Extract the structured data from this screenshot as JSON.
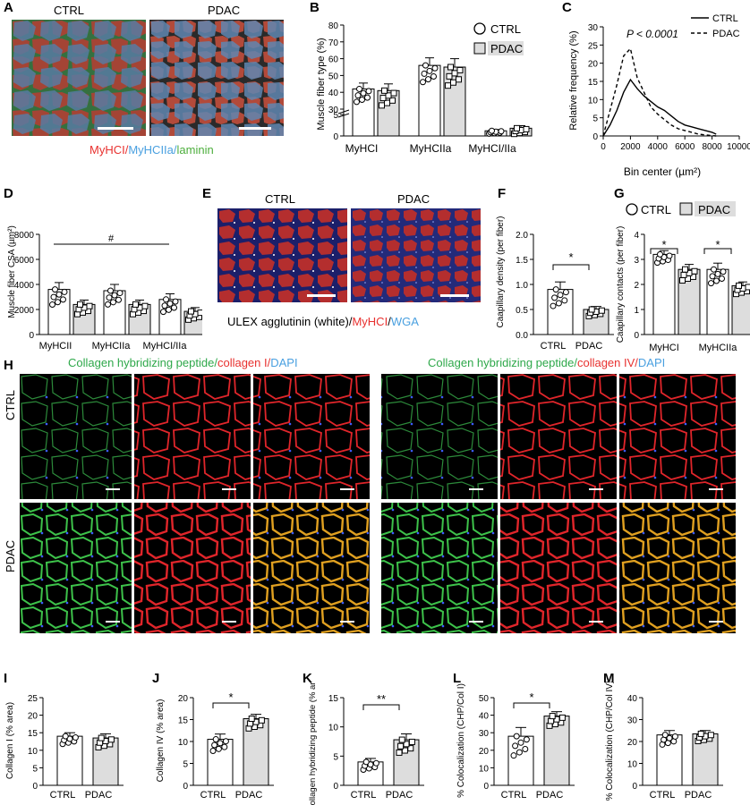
{
  "panels": {
    "A": {
      "letter": "A",
      "left_title": "CTRL",
      "right_title": "PDAC",
      "legend": [
        {
          "text": "MyHCI",
          "color": "#e8312f"
        },
        {
          "text": "/",
          "color": "#e8312f"
        },
        {
          "text": "MyHCIIa",
          "color": "#4aa0e0"
        },
        {
          "text": "/",
          "color": "#4aa0e0"
        },
        {
          "text": "laminin",
          "color": "#4cae3c"
        }
      ]
    },
    "B": {
      "letter": "B",
      "ylabel": "Muscle fiber type (%)",
      "categories": [
        "MyHCI",
        "MyHCIIa",
        "MyHCI/IIa"
      ],
      "legend": [
        "CTRL",
        "PDAC"
      ],
      "yticks": [
        "0",
        "5",
        "30",
        "40",
        "50",
        "60",
        "70",
        "80"
      ]
    },
    "C": {
      "letter": "C",
      "ylabel": "Relative frequency (%)",
      "xlabel": "Bin center (µm²)",
      "pvalue": "P < 0.0001",
      "legend": [
        "CTRL",
        "PDAC"
      ],
      "yticks": [
        "0",
        "5",
        "10",
        "15",
        "20",
        "25",
        "30"
      ],
      "xticks": [
        "0",
        "2000",
        "4000",
        "6000",
        "8000",
        "10000"
      ]
    },
    "D": {
      "letter": "D",
      "ylabel": "Muscle fiber CSA (µm²)",
      "categories": [
        "MyHCII",
        "MyHCIIa",
        "MyHCI/IIa"
      ],
      "annot": "#",
      "yticks": [
        "0",
        "2000",
        "4000",
        "6000",
        "8000"
      ]
    },
    "E": {
      "letter": "E",
      "left_title": "CTRL",
      "right_title": "PDAC",
      "legend": [
        {
          "text": "ULEX agglutinin (white)/",
          "color": "#000"
        },
        {
          "text": "MyHCI",
          "color": "#e8312f"
        },
        {
          "text": "/",
          "color": "#000"
        },
        {
          "text": "WGA",
          "color": "#4aa0e0"
        }
      ]
    },
    "F": {
      "letter": "F",
      "ylabel": "Caapillary density (per fiber)",
      "categories": [
        "CTRL",
        "PDAC"
      ],
      "annot": "*",
      "yticks": [
        "0.0",
        "0.5",
        "1.0",
        "1.5",
        "2.0"
      ]
    },
    "G": {
      "letter": "G",
      "ylabel": "Caapillary contacts (per fiber)",
      "categories": [
        "MyHCI",
        "MyHCIIa"
      ],
      "legend": [
        "CTRL",
        "PDAC"
      ],
      "annot": [
        "*",
        "*"
      ],
      "yticks": [
        "0",
        "1",
        "2",
        "3",
        "4"
      ]
    },
    "H": {
      "letter": "H",
      "left_title": [
        {
          "text": "Collagen hybridizing peptide",
          "color": "#2ea84a"
        },
        {
          "text": "/",
          "color": "#2ea84a"
        },
        {
          "text": "collagen I",
          "color": "#e8312f"
        },
        {
          "text": "/",
          "color": "#e8312f"
        },
        {
          "text": "DAPI",
          "color": "#4aa0e0"
        }
      ],
      "right_title": [
        {
          "text": "Collagen hybridizing peptide",
          "color": "#2ea84a"
        },
        {
          "text": "/",
          "color": "#2ea84a"
        },
        {
          "text": "collagen IV",
          "color": "#e8312f"
        },
        {
          "text": "/",
          "color": "#e8312f"
        },
        {
          "text": "DAPI",
          "color": "#4aa0e0"
        }
      ],
      "row_labels": [
        "CTRL",
        "PDAC"
      ]
    },
    "I": {
      "letter": "I",
      "ylabel": "Collagen I (% area)",
      "categories": [
        "CTRL",
        "PDAC"
      ],
      "yticks": [
        "0",
        "5",
        "10",
        "15",
        "20",
        "25"
      ]
    },
    "J": {
      "letter": "J",
      "ylabel": "Collagen IV (% area)",
      "categories": [
        "CTRL",
        "PDAC"
      ],
      "annot": "*",
      "yticks": [
        "0",
        "5",
        "10",
        "15",
        "20"
      ]
    },
    "K": {
      "letter": "K",
      "ylabel": "Collagen hybridizing peptide (% area)",
      "categories": [
        "CTRL",
        "PDAC"
      ],
      "annot": "**",
      "yticks": [
        "0",
        "5",
        "10",
        "15"
      ]
    },
    "L": {
      "letter": "L",
      "ylabel": "% Colocalization (CHP/Col I)",
      "categories": [
        "CTRL",
        "PDAC"
      ],
      "annot": "*",
      "yticks": [
        "0",
        "10",
        "20",
        "30",
        "40",
        "50"
      ]
    },
    "M": {
      "letter": "M",
      "ylabel": "% Colocalization (CHP/Col IV)",
      "categories": [
        "CTRL",
        "PDAC"
      ],
      "yticks": [
        "0",
        "10",
        "20",
        "30",
        "40"
      ]
    }
  },
  "chart_data": [
    {
      "panel": "B",
      "type": "bar",
      "categories": [
        "MyHCI",
        "MyHCIIa",
        "MyHCI/IIa"
      ],
      "series": [
        {
          "name": "CTRL",
          "values": [
            42,
            56,
            1.2
          ],
          "errors": [
            3.5,
            4.5,
            0.3
          ]
        },
        {
          "name": "PDAC",
          "values": [
            41,
            55,
            1.8
          ],
          "errors": [
            4,
            5,
            0.6
          ]
        }
      ]
    },
    {
      "panel": "C",
      "type": "line",
      "x": [
        0,
        500,
        1000,
        1500,
        2000,
        2500,
        3000,
        3500,
        4000,
        4500,
        5000,
        5500,
        6000,
        6500,
        7000,
        7500,
        8000,
        8300
      ],
      "series": [
        {
          "name": "CTRL",
          "values": [
            0,
            3,
            7,
            12,
            15.5,
            13,
            11,
            9.5,
            8,
            7,
            5.5,
            4,
            3,
            2.5,
            2,
            1.5,
            1,
            0.5
          ]
        },
        {
          "name": "PDAC",
          "values": [
            0,
            7,
            14,
            22,
            24,
            16,
            12,
            8,
            6,
            4.5,
            3,
            2,
            1.5,
            1,
            0.5,
            0.3,
            0.1,
            0
          ]
        }
      ],
      "xlim": [
        0,
        10000
      ],
      "ylim": [
        0,
        30
      ]
    },
    {
      "panel": "D",
      "type": "bar",
      "categories": [
        "MyHCII",
        "MyHCIIa",
        "MyHCI/IIa"
      ],
      "series": [
        {
          "name": "CTRL",
          "values": [
            3600,
            3500,
            2800
          ],
          "errors": [
            550,
            500,
            450
          ]
        },
        {
          "name": "PDAC",
          "values": [
            2400,
            2400,
            1850
          ],
          "errors": [
            350,
            350,
            300
          ]
        }
      ],
      "ylim": [
        0,
        8000
      ]
    },
    {
      "panel": "F",
      "type": "bar",
      "categories": [
        "CTRL",
        "PDAC"
      ],
      "values": [
        0.9,
        0.5
      ],
      "errors": [
        0.15,
        0.06
      ],
      "ylim": [
        0,
        2
      ]
    },
    {
      "panel": "G",
      "type": "bar",
      "categories": [
        "MyHCI",
        "MyHCIIa"
      ],
      "series": [
        {
          "name": "CTRL",
          "values": [
            3.2,
            2.6
          ],
          "errors": [
            0.15,
            0.25
          ]
        },
        {
          "name": "PDAC",
          "values": [
            2.6,
            1.95
          ],
          "errors": [
            0.2,
            0.15
          ]
        }
      ],
      "ylim": [
        0,
        4
      ]
    },
    {
      "panel": "I",
      "type": "bar",
      "categories": [
        "CTRL",
        "PDAC"
      ],
      "values": [
        14,
        13.5
      ],
      "errors": [
        1,
        1.2
      ],
      "ylim": [
        0,
        25
      ]
    },
    {
      "panel": "J",
      "type": "bar",
      "categories": [
        "CTRL",
        "PDAC"
      ],
      "values": [
        10.5,
        15.2
      ],
      "errors": [
        1.2,
        1
      ],
      "ylim": [
        0,
        20
      ]
    },
    {
      "panel": "K",
      "type": "bar",
      "categories": [
        "CTRL",
        "PDAC"
      ],
      "values": [
        4,
        7.8
      ],
      "errors": [
        0.6,
        1
      ],
      "ylim": [
        0,
        15
      ]
    },
    {
      "panel": "L",
      "type": "bar",
      "categories": [
        "CTRL",
        "PDAC"
      ],
      "values": [
        28,
        39.5
      ],
      "errors": [
        5,
        2.5
      ],
      "ylim": [
        0,
        50
      ]
    },
    {
      "panel": "M",
      "type": "bar",
      "categories": [
        "CTRL",
        "PDAC"
      ],
      "values": [
        23,
        23.5
      ],
      "errors": [
        2,
        1.5
      ],
      "ylim": [
        0,
        40
      ]
    }
  ]
}
